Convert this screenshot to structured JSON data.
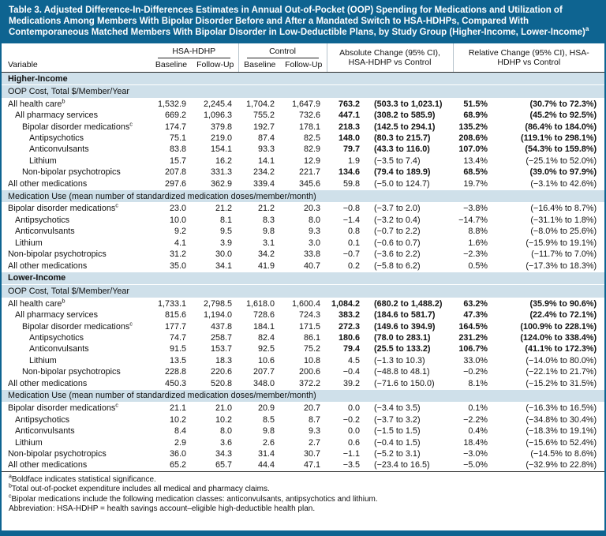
{
  "title": {
    "text": "Table 3. Adjusted Difference-In-Differences Estimates in Annual Out-of-Pocket (OOP) Spending for Medications and Utilization of Medications Among Members With Bipolar Disorder Before and After a Mandated Switch to HSA-HDHPs, Compared With Contemporaneous Matched Members With Bipolar Disorder in Low-Deductible Plans, by Study Group (Higher-Income, Lower-Income)",
    "sup": "a"
  },
  "colors": {
    "accent": "#0e6491",
    "shaded_row": "#cfe0ea"
  },
  "table": {
    "header": {
      "variable": "Variable",
      "groups": [
        {
          "label": "HSA-HDHP",
          "cols": [
            "Baseline",
            "Follow-Up"
          ]
        },
        {
          "label": "Control",
          "cols": [
            "Baseline",
            "Follow-Up"
          ]
        }
      ],
      "absolute": "Absolute Change (95% CI), HSA-HDHP vs Control",
      "relative": "Relative Change (95% CI), HSA-HDHP vs Control"
    },
    "rows": [
      {
        "t": "section",
        "label": "Higher-Income"
      },
      {
        "t": "subsection",
        "label": "OOP Cost, Total $/Member/Year"
      },
      {
        "t": "data",
        "indent": 0,
        "label": "All health care",
        "sup": "b",
        "sig": true,
        "cells": [
          "1,532.9",
          "2,245.4",
          "1,704.2",
          "1,647.9",
          "763.2",
          "(503.3 to 1,023.1)",
          "51.5%",
          "(30.7% to 72.3%)"
        ]
      },
      {
        "t": "data",
        "indent": 1,
        "label": "All pharmacy services",
        "sig": true,
        "cells": [
          "669.2",
          "1,096.3",
          "755.2",
          "732.6",
          "447.1",
          "(308.2 to 585.9)",
          "68.9%",
          "(45.2% to 92.5%)"
        ]
      },
      {
        "t": "data",
        "indent": 2,
        "label": "Bipolar disorder medications",
        "sup": "c",
        "sig": true,
        "cells": [
          "174.7",
          "379.8",
          "192.7",
          "178.1",
          "218.3",
          "(142.5 to 294.1)",
          "135.2%",
          "(86.4% to 184.0%)"
        ]
      },
      {
        "t": "data",
        "indent": 3,
        "label": "Antipsychotics",
        "sig": true,
        "cells": [
          "75.1",
          "219.0",
          "87.4",
          "82.5",
          "148.0",
          "(80.3 to 215.7)",
          "208.6%",
          "(119.1% to 298.1%)"
        ]
      },
      {
        "t": "data",
        "indent": 3,
        "label": "Anticonvulsants",
        "sig": true,
        "cells": [
          "83.8",
          "154.1",
          "93.3",
          "82.9",
          "79.7",
          "(43.3 to 116.0)",
          "107.0%",
          "(54.3% to 159.8%)"
        ]
      },
      {
        "t": "data",
        "indent": 3,
        "label": "Lithium",
        "sig": false,
        "cells": [
          "15.7",
          "16.2",
          "14.1",
          "12.9",
          "1.9",
          "(−3.5 to 7.4)",
          "13.4%",
          "(−25.1% to 52.0%)"
        ]
      },
      {
        "t": "data",
        "indent": 2,
        "label": "Non-bipolar psychotropics",
        "sig": true,
        "cells": [
          "207.8",
          "331.3",
          "234.2",
          "221.7",
          "134.6",
          "(79.4 to 189.9)",
          "68.5%",
          "(39.0% to 97.9%)"
        ]
      },
      {
        "t": "data",
        "indent": 0,
        "label": "All other medications",
        "sig": false,
        "cells": [
          "297.6",
          "362.9",
          "339.4",
          "345.6",
          "59.8",
          "(−5.0 to 124.7)",
          "19.7%",
          "(−3.1% to 42.6%)"
        ]
      },
      {
        "t": "subsection",
        "label": "Medication Use (mean number of standardized medication doses/member/month)"
      },
      {
        "t": "data",
        "indent": 0,
        "label": "Bipolar disorder medications",
        "sup": "c",
        "sig": false,
        "cells": [
          "23.0",
          "21.2",
          "21.2",
          "20.3",
          "−0.8",
          "(−3.7 to 2.0)",
          "−3.8%",
          "(−16.4% to 8.7%)"
        ]
      },
      {
        "t": "data",
        "indent": 1,
        "label": "Antipsychotics",
        "sig": false,
        "cells": [
          "10.0",
          "8.1",
          "8.3",
          "8.0",
          "−1.4",
          "(−3.2 to 0.4)",
          "−14.7%",
          "(−31.1% to 1.8%)"
        ]
      },
      {
        "t": "data",
        "indent": 1,
        "label": "Anticonvulsants",
        "sig": false,
        "cells": [
          "9.2",
          "9.5",
          "9.8",
          "9.3",
          "0.8",
          "(−0.7 to 2.2)",
          "8.8%",
          "(−8.0% to 25.6%)"
        ]
      },
      {
        "t": "data",
        "indent": 1,
        "label": "Lithium",
        "sig": false,
        "cells": [
          "4.1",
          "3.9",
          "3.1",
          "3.0",
          "0.1",
          "(−0.6 to 0.7)",
          "1.6%",
          "(−15.9% to 19.1%)"
        ]
      },
      {
        "t": "data",
        "indent": 0,
        "label": "Non-bipolar psychotropics",
        "sig": false,
        "cells": [
          "31.2",
          "30.0",
          "34.2",
          "33.8",
          "−0.7",
          "(−3.6 to 2.2)",
          "−2.3%",
          "(−11.7% to 7.0%)"
        ]
      },
      {
        "t": "data",
        "indent": 0,
        "label": "All other medications",
        "sig": false,
        "cells": [
          "35.0",
          "34.1",
          "41.9",
          "40.7",
          "0.2",
          "(−5.8 to 6.2)",
          "0.5%",
          "(−17.3% to 18.3%)"
        ]
      },
      {
        "t": "section",
        "label": "Lower-Income"
      },
      {
        "t": "subsection",
        "label": "OOP Cost, Total $/Member/Year"
      },
      {
        "t": "data",
        "indent": 0,
        "label": "All health care",
        "sup": "b",
        "sig": true,
        "cells": [
          "1,733.1",
          "2,798.5",
          "1,618.0",
          "1,600.4",
          "1,084.2",
          "(680.2 to 1,488.2)",
          "63.2%",
          "(35.9% to 90.6%)"
        ]
      },
      {
        "t": "data",
        "indent": 1,
        "label": "All pharmacy services",
        "sig": true,
        "cells": [
          "815.6",
          "1,194.0",
          "728.6",
          "724.3",
          "383.2",
          "(184.6 to 581.7)",
          "47.3%",
          "(22.4% to 72.1%)"
        ]
      },
      {
        "t": "data",
        "indent": 2,
        "label": "Bipolar disorder medications",
        "sup": "c",
        "sig": true,
        "cells": [
          "177.7",
          "437.8",
          "184.1",
          "171.5",
          "272.3",
          "(149.6 to 394.9)",
          "164.5%",
          "(100.9% to 228.1%)"
        ]
      },
      {
        "t": "data",
        "indent": 3,
        "label": "Antipsychotics",
        "sig": true,
        "cells": [
          "74.7",
          "258.7",
          "82.4",
          "86.1",
          "180.6",
          "(78.0 to 283.1)",
          "231.2%",
          "(124.0% to 338.4%)"
        ]
      },
      {
        "t": "data",
        "indent": 3,
        "label": "Anticonvulsants",
        "sig": true,
        "cells": [
          "91.5",
          "153.7",
          "92.5",
          "75.2",
          "79.4",
          "(25.5 to 133.2)",
          "106.7%",
          "(41.1% to 172.3%)"
        ]
      },
      {
        "t": "data",
        "indent": 3,
        "label": "Lithium",
        "sig": false,
        "cells": [
          "13.5",
          "18.3",
          "10.6",
          "10.8",
          "4.5",
          "(−1.3 to 10.3)",
          "33.0%",
          "(−14.0% to 80.0%)"
        ]
      },
      {
        "t": "data",
        "indent": 2,
        "label": "Non-bipolar psychotropics",
        "sig": false,
        "cells": [
          "228.8",
          "220.6",
          "207.7",
          "200.6",
          "−0.4",
          "(−48.8 to 48.1)",
          "−0.2%",
          "(−22.1% to 21.7%)"
        ]
      },
      {
        "t": "data",
        "indent": 0,
        "label": "All other medications",
        "sig": false,
        "cells": [
          "450.3",
          "520.8",
          "348.0",
          "372.2",
          "39.2",
          "(−71.6 to 150.0)",
          "8.1%",
          "(−15.2% to 31.5%)"
        ]
      },
      {
        "t": "subsection",
        "label": "Medication Use (mean number of standardized medication doses/member/month)"
      },
      {
        "t": "data",
        "indent": 0,
        "label": "Bipolar disorder medications",
        "sup": "c",
        "sig": false,
        "cells": [
          "21.1",
          "21.0",
          "20.9",
          "20.7",
          "0.0",
          "(−3.4 to 3.5)",
          "0.1%",
          "(−16.3% to 16.5%)"
        ]
      },
      {
        "t": "data",
        "indent": 1,
        "label": "Antipsychotics",
        "sig": false,
        "cells": [
          "10.2",
          "10.2",
          "8.5",
          "8.7",
          "−0.2",
          "(−3.7 to 3.2)",
          "−2.2%",
          "(−34.8% to 30.4%)"
        ]
      },
      {
        "t": "data",
        "indent": 1,
        "label": "Anticonvulsants",
        "sig": false,
        "cells": [
          "8.4",
          "8.0",
          "9.8",
          "9.3",
          "0.0",
          "(−1.5 to 1.5)",
          "0.4%",
          "(−18.3% to 19.1%)"
        ]
      },
      {
        "t": "data",
        "indent": 1,
        "label": "Lithium",
        "sig": false,
        "cells": [
          "2.9",
          "3.6",
          "2.6",
          "2.7",
          "0.6",
          "(−0.4 to 1.5)",
          "18.4%",
          "(−15.6% to 52.4%)"
        ]
      },
      {
        "t": "data",
        "indent": 0,
        "label": "Non-bipolar psychotropics",
        "sig": false,
        "cells": [
          "36.0",
          "34.3",
          "31.4",
          "30.7",
          "−1.1",
          "(−5.2 to 3.1)",
          "−3.0%",
          "(−14.5% to 8.6%)"
        ]
      },
      {
        "t": "data",
        "indent": 0,
        "label": "All other medications",
        "sig": false,
        "cells": [
          "65.2",
          "65.7",
          "44.4",
          "47.1",
          "−3.5",
          "(−23.4 to 16.5)",
          "−5.0%",
          "(−32.9% to 22.8%)"
        ]
      }
    ]
  },
  "footnotes": [
    {
      "sup": "a",
      "text": "Boldface indicates statistical significance."
    },
    {
      "sup": "b",
      "text": "Total out-of-pocket expenditure includes all medical and pharmacy claims."
    },
    {
      "sup": "c",
      "text": "Bipolar medications include the following medication classes: anticonvulsants, antipsychotics and lithium."
    },
    {
      "text": "Abbreviation: HSA-HDHP = health savings account–eligible high-deductible health plan."
    }
  ]
}
